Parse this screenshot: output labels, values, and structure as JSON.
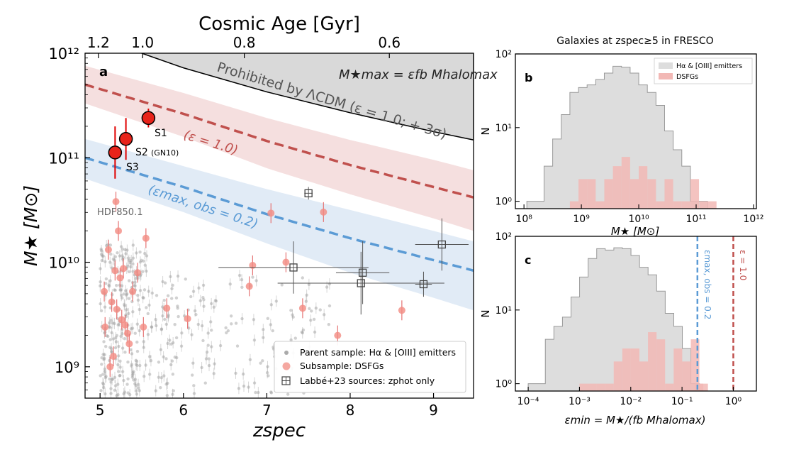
{
  "colors": {
    "prohibited_fill": "#d9d9d9",
    "eps1_color": "#c0504d",
    "eps1_band": "#f3d9d9",
    "eps02_color": "#5b9bd5",
    "eps02_band": "#dce8f5",
    "dsfg_color": "#f28b82",
    "hist_gray": "#dddddd",
    "hist_red": "#f2b8b5"
  },
  "labels": {
    "panel_a": "a",
    "panel_b": "b",
    "panel_c": "c",
    "prohibited": "Prohibited by ΛCDM (ε = 1.0; + 3σ)",
    "mmax_formula": "M★max = εfb Mhalomax",
    "eps1_label": "(ε = 1.0)",
    "eps02_label": "(εmax, obs = 0.2)",
    "hdf850": "HDF850.1",
    "s1": "S1",
    "s2": "S2",
    "s2_gn10": "(GN10)",
    "s3": "S3",
    "b_title": "Galaxies at zspec≥5 in FRESCO",
    "c_eps02": "εmax, obs = 0.2",
    "c_eps1": "ε = 1.0"
  },
  "chart_data": [
    {
      "type": "scatter",
      "panel": "a",
      "xlabel": "zspec",
      "ylabel": "M★ [M⊙]",
      "top_axis_label": "Cosmic Age [Gyr]",
      "xlim": [
        4.82,
        9.48
      ],
      "ylim_log10": [
        8.7,
        12.0
      ],
      "xticks": [
        5,
        6,
        7,
        8,
        9
      ],
      "xtick_labels": [
        "5",
        "6",
        "7",
        "8",
        "9"
      ],
      "yticks_log10": [
        9,
        10,
        11,
        12
      ],
      "ytick_labels": [
        "10⁹",
        "10¹⁰",
        "10¹¹",
        "10¹²"
      ],
      "top_ticks_z": [
        4.98,
        5.51,
        6.73,
        8.47
      ],
      "top_tick_labels": [
        "1.2",
        "1.0",
        "0.8",
        "0.6"
      ],
      "prohibited_curve": {
        "z": [
          5.5,
          6,
          7,
          8,
          9,
          9.48
        ],
        "log10M": [
          12.0,
          11.86,
          11.63,
          11.43,
          11.25,
          11.17
        ]
      },
      "eps1_line": {
        "z": [
          4.82,
          6,
          7,
          8,
          9,
          9.48
        ],
        "log10M": [
          11.7,
          11.42,
          11.16,
          10.93,
          10.72,
          10.62
        ]
      },
      "eps1_band_upper": [
        11.88,
        11.62,
        11.38,
        11.17,
        10.98,
        10.88
      ],
      "eps1_band_lower": [
        11.52,
        11.2,
        10.9,
        10.65,
        10.42,
        10.3
      ],
      "eps02_line": {
        "z": [
          4.82,
          6,
          7,
          8,
          9,
          9.48
        ],
        "log10M": [
          11.0,
          10.72,
          10.46,
          10.23,
          10.02,
          9.92
        ]
      },
      "eps02_band_upper": [
        11.18,
        10.92,
        10.7,
        10.5,
        10.3,
        10.2
      ],
      "eps02_band_lower": [
        10.8,
        10.48,
        10.18,
        9.9,
        9.66,
        9.54
      ],
      "highlighted": [
        {
          "name": "S1",
          "z": 5.58,
          "log10M": 11.38,
          "err": 0.09
        },
        {
          "name": "S2",
          "z": 5.31,
          "log10M": 11.18,
          "err": 0.2
        },
        {
          "name": "S3",
          "z": 5.18,
          "log10M": 11.05,
          "err": 0.25
        }
      ],
      "dsfg": [
        {
          "z": 5.05,
          "log10M": 9.72
        },
        {
          "z": 5.06,
          "log10M": 9.38
        },
        {
          "z": 5.1,
          "log10M": 10.12
        },
        {
          "z": 5.12,
          "log10M": 9.0
        },
        {
          "z": 5.14,
          "log10M": 9.62
        },
        {
          "z": 5.16,
          "log10M": 9.1
        },
        {
          "z": 5.18,
          "log10M": 9.92
        },
        {
          "z": 5.19,
          "log10M": 10.58
        },
        {
          "z": 5.2,
          "log10M": 9.55
        },
        {
          "z": 5.22,
          "log10M": 10.3
        },
        {
          "z": 5.24,
          "log10M": 9.85
        },
        {
          "z": 5.26,
          "log10M": 9.45
        },
        {
          "z": 5.28,
          "log10M": 9.94
        },
        {
          "z": 5.3,
          "log10M": 9.4
        },
        {
          "z": 5.33,
          "log10M": 9.32
        },
        {
          "z": 5.35,
          "log10M": 9.22
        },
        {
          "z": 5.39,
          "log10M": 9.72
        },
        {
          "z": 5.45,
          "log10M": 9.9
        },
        {
          "z": 5.52,
          "log10M": 9.38
        },
        {
          "z": 5.55,
          "log10M": 10.23
        },
        {
          "z": 5.8,
          "log10M": 9.56
        },
        {
          "z": 6.05,
          "log10M": 9.46
        },
        {
          "z": 6.79,
          "log10M": 9.77
        },
        {
          "z": 6.83,
          "log10M": 9.97
        },
        {
          "z": 7.05,
          "log10M": 10.47
        },
        {
          "z": 7.23,
          "log10M": 10.0
        },
        {
          "z": 7.43,
          "log10M": 9.56
        },
        {
          "z": 7.68,
          "log10M": 10.48
        },
        {
          "z": 7.85,
          "log10M": 9.3
        },
        {
          "z": 8.62,
          "log10M": 9.54
        }
      ],
      "labbe": [
        {
          "z": 7.5,
          "log10M": 10.66,
          "xerr": 0.05,
          "yerr": 0.06
        },
        {
          "z": 9.1,
          "log10M": 10.17,
          "xerr": 0.32,
          "yerr": 0.25
        },
        {
          "z": 7.32,
          "log10M": 9.95,
          "xerr": 0.9,
          "yerr": 0.25
        },
        {
          "z": 8.15,
          "log10M": 9.9,
          "xerr": 0.32,
          "yerr": 0.3
        },
        {
          "z": 8.13,
          "log10M": 9.8,
          "xerr": 1.0,
          "yerr": 0.3
        },
        {
          "z": 8.88,
          "log10M": 9.79,
          "xerr": 0.1,
          "yerr": 0.12
        }
      ],
      "parent_sample_note": "Hundreds of gray points concentrated at z ≈ 5.0–5.5 with log10 M between about 8.7 and 10.2, and sparser points out to z ≈ 7.8",
      "legend": [
        {
          "label": "Parent sample: Hα & [OIII] emitters",
          "marker": "gray-dot"
        },
        {
          "label": "Subsample: DSFGs",
          "marker": "red-circle"
        },
        {
          "label": "Labbé+23 sources: zphot only",
          "marker": "open-square"
        }
      ]
    },
    {
      "type": "bar",
      "panel": "b",
      "title": "Galaxies at zspec≥5 in FRESCO",
      "xlabel": "M★ [M⊙]",
      "ylabel": "N",
      "xlim_log10": [
        7.85,
        12.05
      ],
      "ylim_log10": [
        -0.1,
        2.0
      ],
      "xtick_labels": [
        "10⁸",
        "10⁹",
        "10¹⁰",
        "10¹¹",
        "10¹²"
      ],
      "ytick_labels": [
        "10⁰",
        "10¹",
        "10²"
      ],
      "bin_width_log10": 0.15,
      "bin_start_log10": 8.05,
      "gray_counts": [
        1,
        1,
        3,
        7,
        15,
        30,
        35,
        38,
        45,
        55,
        68,
        66,
        55,
        38,
        30,
        20,
        9,
        5,
        3,
        1,
        1
      ],
      "red_start_log10": 8.8,
      "red_counts": [
        1,
        2,
        2,
        1,
        2,
        3,
        4,
        2,
        3,
        2,
        1,
        2,
        1,
        1,
        2
      ],
      "red_extra": [
        {
          "log10M": 11.13,
          "count": 1
        },
        {
          "log10M": 11.28,
          "count": 1
        }
      ],
      "legend": [
        {
          "label": "Hα & [OIII] emitters",
          "color": "gray"
        },
        {
          "label": "DSFGs",
          "color": "red"
        }
      ]
    },
    {
      "type": "bar",
      "panel": "c",
      "xlabel": "εmin = M★/(fb Mhalomax)",
      "ylabel": "N",
      "xlim_log10": [
        -4.25,
        0.45
      ],
      "ylim_log10": [
        -0.1,
        2.0
      ],
      "xtick_labels": [
        "10⁻⁴",
        "10⁻³",
        "10⁻²",
        "10⁻¹",
        "10⁰"
      ],
      "ytick_labels": [
        "10⁰",
        "10¹",
        "10²"
      ],
      "bin_width_log10": 0.167,
      "bin_start_log10": -4.0,
      "gray_counts": [
        1,
        1,
        4,
        6,
        8,
        15,
        28,
        50,
        68,
        65,
        70,
        68,
        55,
        38,
        30,
        18,
        9,
        6,
        3,
        1
      ],
      "red_start_log10": -3.0,
      "red_counts": [
        1,
        1,
        1,
        1,
        2,
        3,
        3,
        2,
        5,
        4,
        1,
        3,
        2,
        4,
        1
      ],
      "red_extra": [
        {
          "log10eps": -0.67,
          "count": 1
        }
      ],
      "vlines": [
        {
          "log10eps": -0.7,
          "label": "εmax, obs = 0.2",
          "color": "blue"
        },
        {
          "log10eps": 0.0,
          "label": "ε = 1.0",
          "color": "red"
        }
      ]
    }
  ]
}
